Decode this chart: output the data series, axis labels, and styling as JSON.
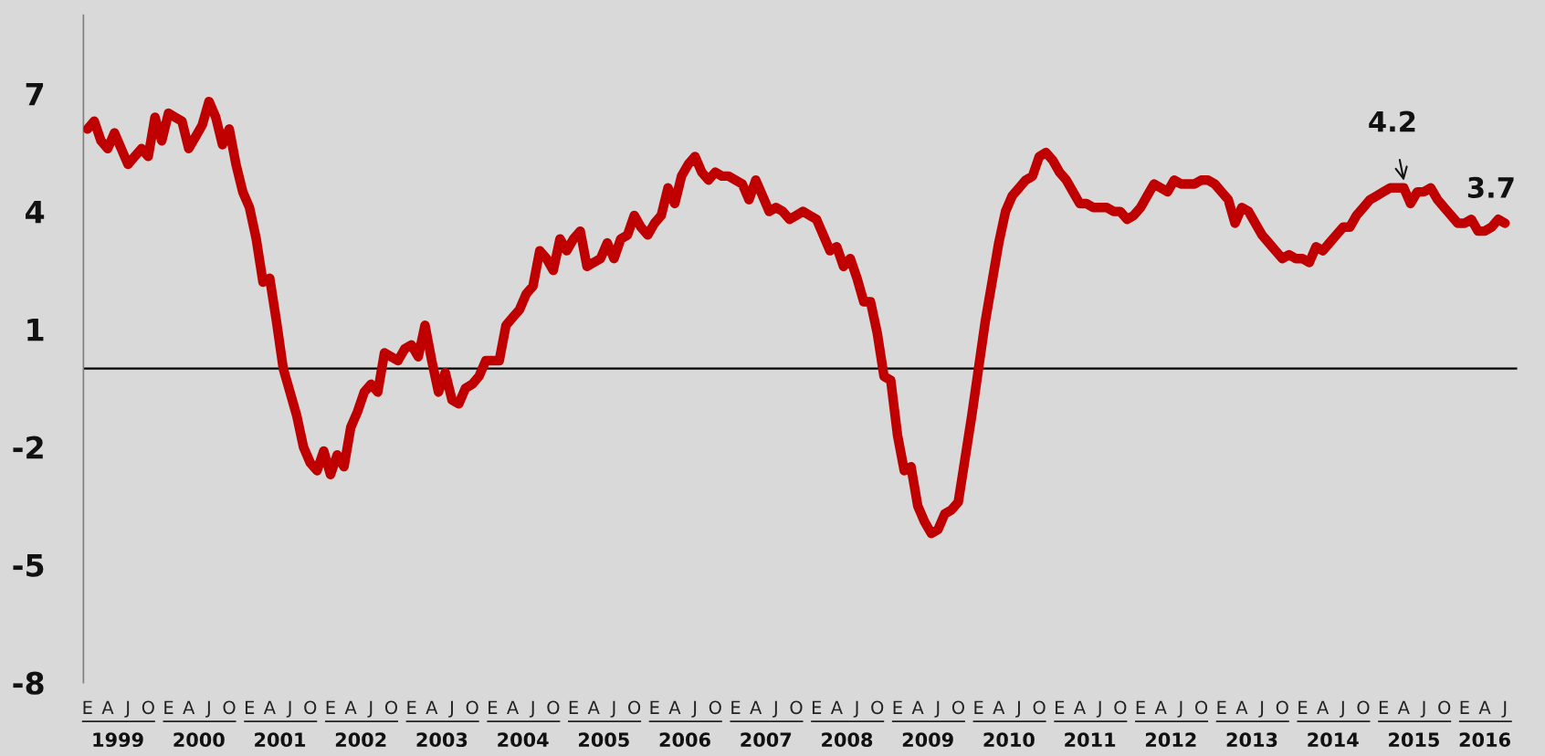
{
  "chart_data": {
    "type": "line",
    "categories": [
      "E",
      null,
      null,
      "A",
      null,
      null,
      "J",
      null,
      null,
      "O",
      null,
      null,
      "E",
      null,
      null,
      "A",
      null,
      null,
      "J",
      null,
      null,
      "O",
      null,
      null,
      "E",
      null,
      null,
      "A",
      null,
      null,
      "J",
      null,
      null,
      "O",
      null,
      null,
      "E",
      null,
      null,
      "A",
      null,
      null,
      "J",
      null,
      null,
      "O",
      null,
      null,
      "E",
      null,
      null,
      "A",
      null,
      null,
      "J",
      null,
      null,
      "O",
      null,
      null,
      "E",
      null,
      null,
      "A",
      null,
      null,
      "J",
      null,
      null,
      "O",
      null,
      null,
      "E",
      null,
      null,
      "A",
      null,
      null,
      "J",
      null,
      null,
      "O",
      null,
      null,
      "E",
      null,
      null,
      "A",
      null,
      null,
      "J",
      null,
      null,
      "O",
      null,
      null,
      "E",
      null,
      null,
      "A",
      null,
      null,
      "J",
      null,
      null,
      "O",
      null,
      null,
      "E",
      null,
      null,
      "A",
      null,
      null,
      "J",
      null,
      null,
      "O",
      null,
      null,
      "E",
      null,
      null,
      "A",
      null,
      null,
      "J",
      null,
      null,
      "O",
      null,
      null,
      "E",
      null,
      null,
      "A",
      null,
      null,
      "J",
      null,
      null,
      "O",
      null,
      null,
      "E",
      null,
      null,
      "A",
      null,
      null,
      "J",
      null,
      null,
      "O",
      null,
      null,
      "E",
      null,
      null,
      "A",
      null,
      null,
      "J",
      null,
      null,
      "O",
      null,
      null,
      "E",
      null,
      null,
      "A",
      null,
      null,
      "J",
      null,
      null,
      "O",
      null,
      null,
      "E",
      null,
      null,
      "A",
      null,
      null,
      "J",
      null,
      null,
      "O",
      null,
      null,
      "E",
      null,
      null,
      "A",
      null,
      null,
      "J",
      null,
      null,
      "O",
      null,
      null,
      "E",
      null,
      null,
      "A",
      null,
      null,
      "J"
    ],
    "series": [
      {
        "color": "#c00000",
        "values": [
          6.1,
          6.3,
          5.8,
          5.6,
          6.0,
          5.6,
          5.2,
          5.4,
          5.6,
          5.4,
          6.4,
          5.8,
          6.5,
          6.4,
          6.3,
          5.6,
          5.9,
          6.2,
          6.8,
          6.4,
          5.7,
          6.1,
          5.2,
          4.5,
          4.1,
          3.3,
          2.2,
          2.3,
          1.2,
          0.0,
          -0.6,
          -1.2,
          -2.0,
          -2.4,
          -2.6,
          -2.1,
          -2.7,
          -2.2,
          -2.5,
          -1.5,
          -1.1,
          -0.6,
          -0.4,
          -0.6,
          0.4,
          0.3,
          0.2,
          0.5,
          0.6,
          0.3,
          1.1,
          0.2,
          -0.6,
          -0.1,
          -0.8,
          -0.9,
          -0.5,
          -0.4,
          -0.2,
          0.2,
          0.2,
          0.2,
          1.1,
          1.3,
          1.5,
          1.9,
          2.1,
          3.0,
          2.8,
          2.5,
          3.3,
          3.0,
          3.3,
          3.5,
          2.6,
          2.7,
          2.8,
          3.2,
          2.8,
          3.3,
          3.4,
          3.9,
          3.6,
          3.4,
          3.7,
          3.9,
          4.6,
          4.2,
          4.9,
          5.2,
          5.4,
          5.0,
          4.8,
          5.0,
          4.9,
          4.9,
          4.8,
          4.7,
          4.3,
          4.8,
          4.4,
          4.0,
          4.1,
          4.0,
          3.8,
          3.9,
          4.0,
          3.9,
          3.8,
          3.4,
          3.0,
          3.1,
          2.6,
          2.8,
          2.3,
          1.7,
          1.7,
          0.9,
          -0.2,
          -0.3,
          -1.7,
          -2.6,
          -2.5,
          -3.5,
          -3.9,
          -4.2,
          -4.1,
          -3.7,
          -3.6,
          -3.4,
          -2.3,
          -1.2,
          0.0,
          1.2,
          2.2,
          3.2,
          4.0,
          4.4,
          4.6,
          4.8,
          4.9,
          5.4,
          5.5,
          5.3,
          5.0,
          4.8,
          4.5,
          4.2,
          4.2,
          4.1,
          4.1,
          4.1,
          4.0,
          4.0,
          3.8,
          3.9,
          4.1,
          4.4,
          4.7,
          4.6,
          4.5,
          4.8,
          4.7,
          4.7,
          4.7,
          4.8,
          4.8,
          4.7,
          4.5,
          4.3,
          3.7,
          4.1,
          4.0,
          3.7,
          3.4,
          3.2,
          3.0,
          2.8,
          2.9,
          2.8,
          2.8,
          2.7,
          3.1,
          3.0,
          3.2,
          3.4,
          3.6,
          3.6,
          3.9,
          4.1,
          4.3,
          4.4,
          4.5,
          4.6,
          4.6,
          4.6,
          4.2,
          4.5,
          4.5,
          4.6,
          4.3,
          4.1,
          3.9,
          3.7,
          3.7,
          3.8,
          3.5,
          3.5,
          3.6,
          3.8,
          3.7
        ]
      }
    ],
    "ylim": [
      -8,
      9
    ],
    "yticks": [
      7,
      4,
      1,
      -2,
      -5,
      -8
    ],
    "ref_lines": [
      {
        "axis": "y",
        "value": 0,
        "color": "#000000"
      }
    ],
    "annotations": [
      "1999",
      "2000",
      "2001",
      "2002",
      "2003",
      "2004",
      "2005",
      "2006",
      "2007",
      "2008",
      "2009",
      "2010",
      "2011",
      "2012",
      "2013",
      "2014",
      "2015",
      "2016",
      {
        "text": "4.2"
      },
      {
        "text": "3.7"
      }
    ]
  }
}
